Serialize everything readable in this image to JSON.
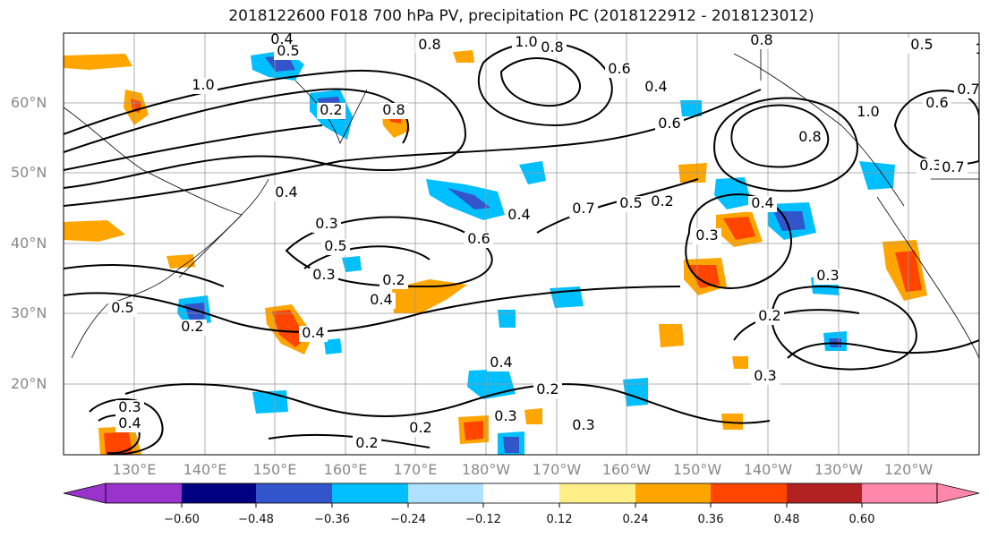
{
  "figure": {
    "title": "2018122600 F018 700 hPa PV, precipitation PC (2018122912 - 2018123012)"
  },
  "map": {
    "lat_labels": [
      "60°N",
      "50°N",
      "40°N",
      "30°N",
      "20°N"
    ],
    "lon_labels": [
      "130°E",
      "140°E",
      "150°E",
      "160°E",
      "170°E",
      "180°W",
      "170°W",
      "160°W",
      "150°W",
      "140°W",
      "130°W",
      "120°W"
    ],
    "contour_labels": [
      "0.4",
      "0.5",
      "0.8",
      "1.0",
      "0.8",
      "0.6",
      "0.8",
      "0.5",
      "0.7",
      "0.6",
      "1.0",
      "0.8",
      "0.4",
      "1.0",
      "0.6",
      "1.0",
      "0.2",
      "0.8",
      "0.3",
      "0.4",
      "0.3",
      "0.5",
      "0.6",
      "0.4",
      "0.7",
      "0.5",
      "0.2",
      "0.3",
      "0.4",
      "0.3",
      "0.4",
      "0.2",
      "0.4",
      "0.3",
      "0.2",
      "0.2",
      "0.3",
      "0.4",
      "0.2",
      "0.3",
      "0.2",
      "0.3",
      "0.2",
      "0.5",
      "0.3",
      "0.4",
      "0.7"
    ],
    "colors": {
      "land_border": "#000000",
      "grid": "#999999",
      "contour": "#000000"
    }
  },
  "colorbar": {
    "ticks": [
      "−0.60",
      "−0.48",
      "−0.36",
      "−0.24",
      "−0.12",
      "0.12",
      "0.24",
      "0.36",
      "0.48",
      "0.60"
    ],
    "colors": [
      "#9933cc",
      "#000080",
      "#3355cc",
      "#00bfff",
      "#b0e0ff",
      "#ffffff",
      "#ffee88",
      "#ffa500",
      "#ff4500",
      "#b22222",
      "#ff88aa"
    ]
  }
}
